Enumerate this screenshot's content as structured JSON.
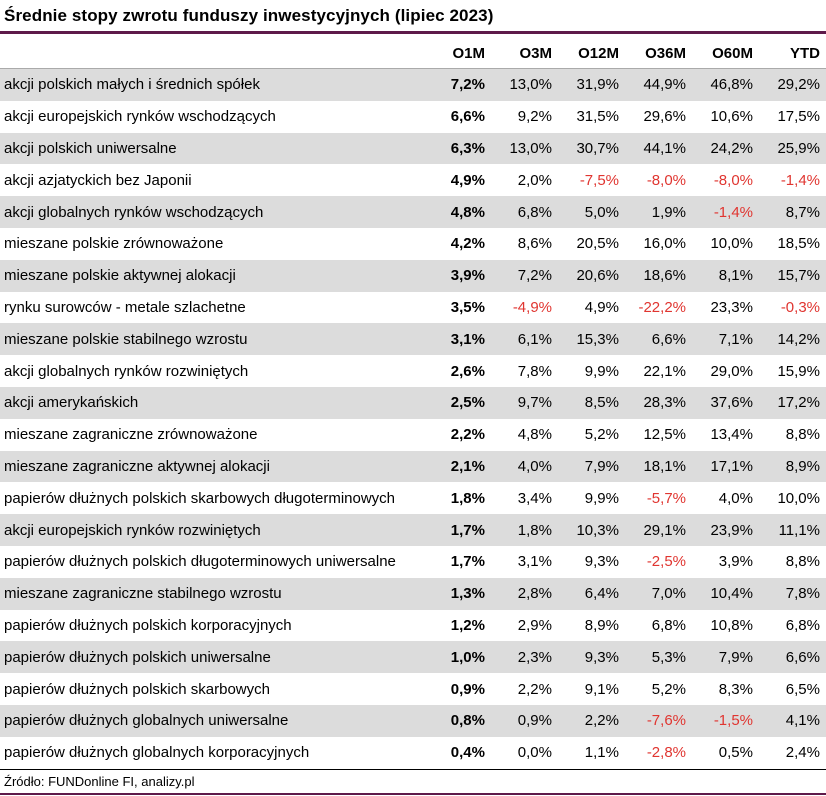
{
  "title": "Średnie stopy zwrotu funduszy inwestycyjnych (lipiec 2023)",
  "footer": {
    "source": "Źródło: FUNDonline FI, analizy.pl"
  },
  "colors": {
    "accent": "#5e1a4a",
    "negative": "#e03530",
    "row_stripe": "#dcdcdc",
    "text": "#000000"
  },
  "chart_data": {
    "type": "table",
    "title": "Średnie stopy zwrotu funduszy inwestycyjnych (lipiec 2023)",
    "columns": [
      "O1M",
      "O3M",
      "O12M",
      "O36M",
      "O60M",
      "YTD"
    ],
    "rows": [
      {
        "label": "akcji polskich małych i średnich spółek",
        "values": [
          "7,2%",
          "13,0%",
          "31,9%",
          "44,9%",
          "46,8%",
          "29,2%"
        ]
      },
      {
        "label": "akcji europejskich rynków wschodzących",
        "values": [
          "6,6%",
          "9,2%",
          "31,5%",
          "29,6%",
          "10,6%",
          "17,5%"
        ]
      },
      {
        "label": "akcji polskich uniwersalne",
        "values": [
          "6,3%",
          "13,0%",
          "30,7%",
          "44,1%",
          "24,2%",
          "25,9%"
        ]
      },
      {
        "label": "akcji azjatyckich bez Japonii",
        "values": [
          "4,9%",
          "2,0%",
          "-7,5%",
          "-8,0%",
          "-8,0%",
          "-1,4%"
        ]
      },
      {
        "label": "akcji globalnych rynków wschodzących",
        "values": [
          "4,8%",
          "6,8%",
          "5,0%",
          "1,9%",
          "-1,4%",
          "8,7%"
        ]
      },
      {
        "label": "mieszane polskie zrównoważone",
        "values": [
          "4,2%",
          "8,6%",
          "20,5%",
          "16,0%",
          "10,0%",
          "18,5%"
        ]
      },
      {
        "label": "mieszane polskie aktywnej alokacji",
        "values": [
          "3,9%",
          "7,2%",
          "20,6%",
          "18,6%",
          "8,1%",
          "15,7%"
        ]
      },
      {
        "label": "rynku surowców - metale szlachetne",
        "values": [
          "3,5%",
          "-4,9%",
          "4,9%",
          "-22,2%",
          "23,3%",
          "-0,3%"
        ]
      },
      {
        "label": "mieszane polskie stabilnego wzrostu",
        "values": [
          "3,1%",
          "6,1%",
          "15,3%",
          "6,6%",
          "7,1%",
          "14,2%"
        ]
      },
      {
        "label": "akcji globalnych rynków rozwiniętych",
        "values": [
          "2,6%",
          "7,8%",
          "9,9%",
          "22,1%",
          "29,0%",
          "15,9%"
        ]
      },
      {
        "label": "akcji amerykańskich",
        "values": [
          "2,5%",
          "9,7%",
          "8,5%",
          "28,3%",
          "37,6%",
          "17,2%"
        ]
      },
      {
        "label": "mieszane zagraniczne zrównoważone",
        "values": [
          "2,2%",
          "4,8%",
          "5,2%",
          "12,5%",
          "13,4%",
          "8,8%"
        ]
      },
      {
        "label": "mieszane zagraniczne aktywnej alokacji",
        "values": [
          "2,1%",
          "4,0%",
          "7,9%",
          "18,1%",
          "17,1%",
          "8,9%"
        ]
      },
      {
        "label": "papierów dłużnych polskich skarbowych długoterminowych",
        "values": [
          "1,8%",
          "3,4%",
          "9,9%",
          "-5,7%",
          "4,0%",
          "10,0%"
        ]
      },
      {
        "label": "akcji europejskich rynków rozwiniętych",
        "values": [
          "1,7%",
          "1,8%",
          "10,3%",
          "29,1%",
          "23,9%",
          "11,1%"
        ]
      },
      {
        "label": "papierów dłużnych polskich długoterminowych uniwersalne",
        "values": [
          "1,7%",
          "3,1%",
          "9,3%",
          "-2,5%",
          "3,9%",
          "8,8%"
        ]
      },
      {
        "label": "mieszane zagraniczne stabilnego wzrostu",
        "values": [
          "1,3%",
          "2,8%",
          "6,4%",
          "7,0%",
          "10,4%",
          "7,8%"
        ]
      },
      {
        "label": "papierów dłużnych polskich korporacyjnych",
        "values": [
          "1,2%",
          "2,9%",
          "8,9%",
          "6,8%",
          "10,8%",
          "6,8%"
        ]
      },
      {
        "label": "papierów dłużnych polskich uniwersalne",
        "values": [
          "1,0%",
          "2,3%",
          "9,3%",
          "5,3%",
          "7,9%",
          "6,6%"
        ]
      },
      {
        "label": "papierów dłużnych polskich skarbowych",
        "values": [
          "0,9%",
          "2,2%",
          "9,1%",
          "5,2%",
          "8,3%",
          "6,5%"
        ]
      },
      {
        "label": "papierów dłużnych globalnych uniwersalne",
        "values": [
          "0,8%",
          "0,9%",
          "2,2%",
          "-7,6%",
          "-1,5%",
          "4,1%"
        ]
      },
      {
        "label": "papierów dłużnych globalnych korporacyjnych",
        "values": [
          "0,4%",
          "0,0%",
          "1,1%",
          "-2,8%",
          "0,5%",
          "2,4%"
        ]
      }
    ],
    "layout": {
      "first_column_bold": true,
      "negatives_in_red": true,
      "stripe_odd_rows": true
    },
    "source": "Źródło: FUNDonline FI, analizy.pl"
  }
}
